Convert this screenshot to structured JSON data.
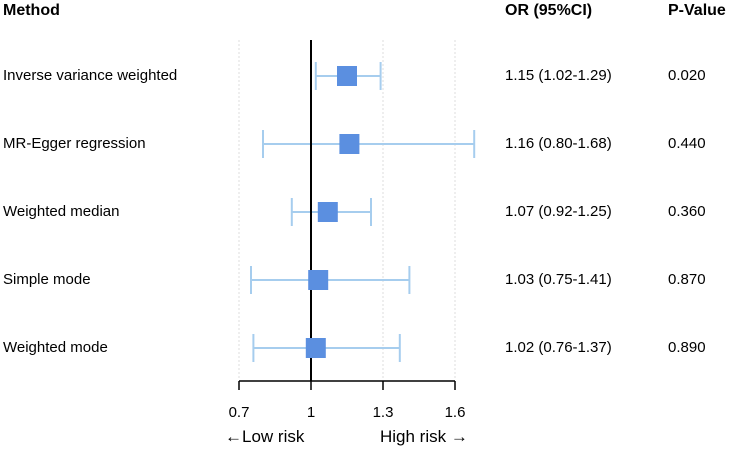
{
  "chart_data": {
    "type": "forest",
    "headers": {
      "method": "Method",
      "or": "OR (95%CI)",
      "pvalue": "P-Value"
    },
    "rows": [
      {
        "method": "Inverse variance weighted",
        "or": 1.15,
        "lower": 1.02,
        "upper": 1.29,
        "or_text": "1.15 (1.02-1.29)",
        "pvalue": "0.020"
      },
      {
        "method": "MR-Egger regression",
        "or": 1.16,
        "lower": 0.8,
        "upper": 1.68,
        "or_text": "1.16 (0.80-1.68)",
        "pvalue": "0.440"
      },
      {
        "method": "Weighted median",
        "or": 1.07,
        "lower": 0.92,
        "upper": 1.25,
        "or_text": "1.07 (0.92-1.25)",
        "pvalue": "0.360"
      },
      {
        "method": "Simple mode",
        "or": 1.03,
        "lower": 0.75,
        "upper": 1.41,
        "or_text": "1.03 (0.75-1.41)",
        "pvalue": "0.870"
      },
      {
        "method": "Weighted mode",
        "or": 1.02,
        "lower": 0.76,
        "upper": 1.37,
        "or_text": "1.02 (0.76-1.37)",
        "pvalue": "0.890"
      }
    ],
    "xlim": [
      0.7,
      1.6
    ],
    "xticks": [
      0.7,
      1,
      1.3,
      1.6
    ],
    "xtick_labels": [
      "0.7",
      "1",
      "1.3",
      "1.6"
    ],
    "reference_line": 1,
    "low_label": "←Low risk",
    "high_label": "High risk →",
    "colors": {
      "point": "#5b8fe0",
      "ci": "#a6cdee",
      "axis": "#000000",
      "grid": "#dddddd"
    }
  }
}
